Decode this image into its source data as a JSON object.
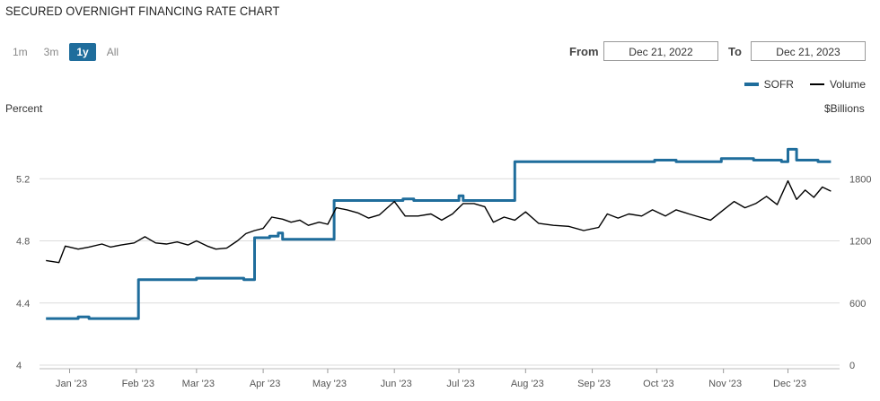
{
  "header": {
    "title": "SECURED OVERNIGHT FINANCING RATE CHART"
  },
  "range_buttons": [
    {
      "label": "1m",
      "active": false
    },
    {
      "label": "3m",
      "active": false
    },
    {
      "label": "1y",
      "active": true
    },
    {
      "label": "All",
      "active": false
    }
  ],
  "date_range": {
    "from_label": "From",
    "from_value": "Dec 21, 2022",
    "to_label": "To",
    "to_value": "Dec 21, 2023"
  },
  "colors": {
    "sofr": "#1f6d9c",
    "volume": "#000000",
    "grid": "#dcdcdc",
    "axis_text": "#555555"
  },
  "chart_data": {
    "type": "line",
    "title": "SECURED OVERNIGHT FINANCING RATE CHART",
    "left_axis": {
      "label": "Percent",
      "ticks": [
        4,
        4.4,
        4.8,
        5.2
      ],
      "range": [
        4,
        5.6
      ]
    },
    "right_axis": {
      "label": "$Billions",
      "ticks": [
        0,
        600,
        1200,
        1800
      ],
      "range": [
        0,
        2400
      ]
    },
    "x_axis": {
      "labels": [
        "Jan '23",
        "Feb '23",
        "Mar '23",
        "Apr '23",
        "May '23",
        "Jun '23",
        "Jul '23",
        "Aug '23",
        "Sep '23",
        "Oct '23",
        "Nov '23",
        "Dec '23"
      ]
    },
    "legend": {
      "placement": "top-right",
      "items": [
        "SOFR",
        "Volume"
      ]
    },
    "grid": "horizontal",
    "series": [
      {
        "name": "SOFR",
        "axis": "left",
        "color": "#1f6d9c",
        "points": [
          [
            "2022-12-21",
            4.3
          ],
          [
            "2023-01-05",
            4.31
          ],
          [
            "2023-01-10",
            4.3
          ],
          [
            "2023-01-31",
            4.3
          ],
          [
            "2023-02-02",
            4.55
          ],
          [
            "2023-02-27",
            4.55
          ],
          [
            "2023-03-01",
            4.56
          ],
          [
            "2023-03-21",
            4.56
          ],
          [
            "2023-03-23",
            4.55
          ],
          [
            "2023-03-27",
            4.55
          ],
          [
            "2023-03-28",
            4.82
          ],
          [
            "2023-04-04",
            4.83
          ],
          [
            "2023-04-08",
            4.85
          ],
          [
            "2023-04-10",
            4.81
          ],
          [
            "2023-04-30",
            4.81
          ],
          [
            "2023-05-01",
            4.81
          ],
          [
            "2023-05-04",
            5.06
          ],
          [
            "2023-05-15",
            5.06
          ],
          [
            "2023-05-31",
            5.06
          ],
          [
            "2023-06-05",
            5.07
          ],
          [
            "2023-06-10",
            5.06
          ],
          [
            "2023-06-28",
            5.06
          ],
          [
            "2023-07-01",
            5.09
          ],
          [
            "2023-07-03",
            5.06
          ],
          [
            "2023-07-20",
            5.06
          ],
          [
            "2023-07-26",
            5.06
          ],
          [
            "2023-07-27",
            5.31
          ],
          [
            "2023-08-10",
            5.31
          ],
          [
            "2023-09-01",
            5.31
          ],
          [
            "2023-09-30",
            5.32
          ],
          [
            "2023-10-02",
            5.32
          ],
          [
            "2023-10-10",
            5.31
          ],
          [
            "2023-10-31",
            5.33
          ],
          [
            "2023-11-15",
            5.32
          ],
          [
            "2023-11-28",
            5.31
          ],
          [
            "2023-12-01",
            5.39
          ],
          [
            "2023-12-05",
            5.32
          ],
          [
            "2023-12-15",
            5.31
          ],
          [
            "2023-12-21",
            5.31
          ]
        ]
      },
      {
        "name": "Volume",
        "axis": "right",
        "color": "#000000",
        "points": [
          [
            "2022-12-21",
            1010
          ],
          [
            "2022-12-27",
            990
          ],
          [
            "2022-12-30",
            1150
          ],
          [
            "2023-01-05",
            1120
          ],
          [
            "2023-01-10",
            1140
          ],
          [
            "2023-01-16",
            1170
          ],
          [
            "2023-01-20",
            1140
          ],
          [
            "2023-01-25",
            1160
          ],
          [
            "2023-01-31",
            1180
          ],
          [
            "2023-02-05",
            1240
          ],
          [
            "2023-02-10",
            1180
          ],
          [
            "2023-02-15",
            1170
          ],
          [
            "2023-02-20",
            1190
          ],
          [
            "2023-02-25",
            1160
          ],
          [
            "2023-03-01",
            1200
          ],
          [
            "2023-03-06",
            1150
          ],
          [
            "2023-03-10",
            1120
          ],
          [
            "2023-03-15",
            1130
          ],
          [
            "2023-03-20",
            1200
          ],
          [
            "2023-03-24",
            1270
          ],
          [
            "2023-03-28",
            1300
          ],
          [
            "2023-04-01",
            1320
          ],
          [
            "2023-04-05",
            1430
          ],
          [
            "2023-04-10",
            1410
          ],
          [
            "2023-04-14",
            1380
          ],
          [
            "2023-04-18",
            1400
          ],
          [
            "2023-04-22",
            1350
          ],
          [
            "2023-04-27",
            1380
          ],
          [
            "2023-05-01",
            1360
          ],
          [
            "2023-05-05",
            1520
          ],
          [
            "2023-05-10",
            1500
          ],
          [
            "2023-05-15",
            1470
          ],
          [
            "2023-05-20",
            1420
          ],
          [
            "2023-05-25",
            1450
          ],
          [
            "2023-06-01",
            1580
          ],
          [
            "2023-06-06",
            1440
          ],
          [
            "2023-06-12",
            1440
          ],
          [
            "2023-06-18",
            1460
          ],
          [
            "2023-06-23",
            1400
          ],
          [
            "2023-06-28",
            1460
          ],
          [
            "2023-07-03",
            1560
          ],
          [
            "2023-07-08",
            1560
          ],
          [
            "2023-07-13",
            1530
          ],
          [
            "2023-07-17",
            1380
          ],
          [
            "2023-07-22",
            1430
          ],
          [
            "2023-07-27",
            1400
          ],
          [
            "2023-08-01",
            1480
          ],
          [
            "2023-08-07",
            1370
          ],
          [
            "2023-08-14",
            1350
          ],
          [
            "2023-08-21",
            1340
          ],
          [
            "2023-08-28",
            1300
          ],
          [
            "2023-09-04",
            1330
          ],
          [
            "2023-09-08",
            1460
          ],
          [
            "2023-09-13",
            1420
          ],
          [
            "2023-09-18",
            1460
          ],
          [
            "2023-09-24",
            1440
          ],
          [
            "2023-09-29",
            1500
          ],
          [
            "2023-10-05",
            1440
          ],
          [
            "2023-10-10",
            1500
          ],
          [
            "2023-10-16",
            1460
          ],
          [
            "2023-10-21",
            1430
          ],
          [
            "2023-10-26",
            1400
          ],
          [
            "2023-11-01",
            1500
          ],
          [
            "2023-11-06",
            1580
          ],
          [
            "2023-11-11",
            1520
          ],
          [
            "2023-11-16",
            1560
          ],
          [
            "2023-11-21",
            1630
          ],
          [
            "2023-11-26",
            1550
          ],
          [
            "2023-12-01",
            1780
          ],
          [
            "2023-12-05",
            1600
          ],
          [
            "2023-12-09",
            1690
          ],
          [
            "2023-12-13",
            1620
          ],
          [
            "2023-12-17",
            1720
          ],
          [
            "2023-12-21",
            1680
          ]
        ]
      }
    ]
  }
}
